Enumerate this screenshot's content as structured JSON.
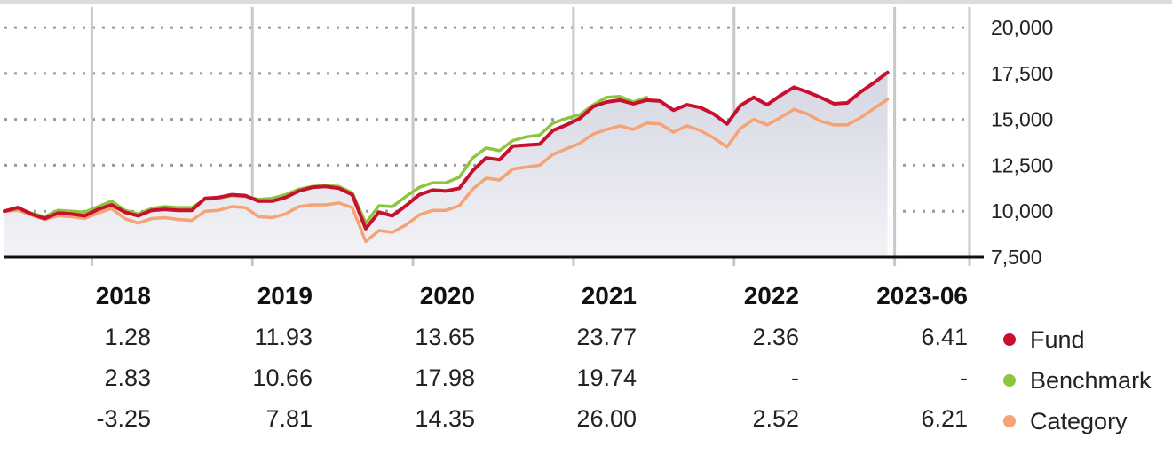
{
  "chart_data": {
    "type": "line",
    "title": "",
    "xlabel": "",
    "ylabel": "",
    "x_start": "2017-07",
    "x_end": "2023-06",
    "x_label_unit": "month",
    "ylim": [
      7500,
      21500
    ],
    "yticks": [
      7500,
      10000,
      12500,
      15000,
      17500,
      20000
    ],
    "ytick_labels": [
      "7,500",
      "10,000",
      "12,500",
      "15,000",
      "17,500",
      "20,000"
    ],
    "series": [
      {
        "name": "Fund",
        "color": "#c8102e",
        "values": [
          10000,
          10200,
          9850,
          9600,
          9900,
          9850,
          9750,
          10100,
          10350,
          9950,
          9750,
          10050,
          10100,
          10050,
          10050,
          10700,
          10750,
          10900,
          10850,
          10550,
          10550,
          10750,
          11100,
          11300,
          11350,
          11250,
          10900,
          9050,
          9950,
          9750,
          10300,
          10900,
          11150,
          11100,
          11250,
          12200,
          12900,
          12800,
          13550,
          13600,
          13650,
          14400,
          14700,
          15050,
          15700,
          15950,
          16050,
          15850,
          16050,
          16000,
          15500,
          15800,
          15650,
          15300,
          14750,
          15750,
          16200,
          15800,
          16300,
          16750,
          16500,
          16200,
          15850,
          15900,
          16500,
          17000,
          17550
        ]
      },
      {
        "name": "Benchmark",
        "color": "#8cc63f",
        "values": [
          10000,
          10150,
          9900,
          9700,
          10050,
          10000,
          9950,
          10250,
          10550,
          10050,
          9850,
          10150,
          10250,
          10200,
          10200,
          10650,
          10700,
          10850,
          10800,
          10650,
          10700,
          10900,
          11200,
          11350,
          11400,
          11350,
          11000,
          9350,
          10300,
          10250,
          10800,
          11300,
          11550,
          11550,
          11850,
          12900,
          13450,
          13300,
          13850,
          14050,
          14150,
          14800,
          15050,
          15250,
          15800,
          16200,
          16250,
          15950,
          16200
        ]
      },
      {
        "name": "Category",
        "color": "#f5a275",
        "values": [
          10000,
          10050,
          9800,
          9550,
          9750,
          9700,
          9600,
          9900,
          10150,
          9600,
          9350,
          9600,
          9650,
          9550,
          9500,
          10000,
          10050,
          10250,
          10200,
          9700,
          9650,
          9850,
          10250,
          10350,
          10350,
          10450,
          10200,
          8350,
          8950,
          8850,
          9250,
          9800,
          10050,
          10050,
          10300,
          11200,
          11800,
          11700,
          12300,
          12400,
          12500,
          13100,
          13400,
          13700,
          14200,
          14450,
          14650,
          14450,
          14800,
          14750,
          14300,
          14650,
          14400,
          14000,
          13500,
          14500,
          15000,
          14700,
          15100,
          15550,
          15300,
          14900,
          14700,
          14700,
          15100,
          15600,
          16100
        ]
      }
    ],
    "table": {
      "columns": [
        "2018",
        "2019",
        "2020",
        "2021",
        "2022",
        "2023-06"
      ],
      "rows": [
        {
          "name": "Fund",
          "color": "#c8102e",
          "values": [
            "1.28",
            "11.93",
            "13.65",
            "23.77",
            "2.36",
            "6.41"
          ]
        },
        {
          "name": "Benchmark",
          "color": "#8cc63f",
          "values": [
            "2.83",
            "10.66",
            "17.98",
            "19.74",
            "-",
            "-"
          ]
        },
        {
          "name": "Category",
          "color": "#f5a275",
          "values": [
            "-3.25",
            "7.81",
            "14.35",
            "26.00",
            "2.52",
            "6.21"
          ]
        }
      ]
    },
    "grid": true,
    "legend": "right-of-table"
  }
}
